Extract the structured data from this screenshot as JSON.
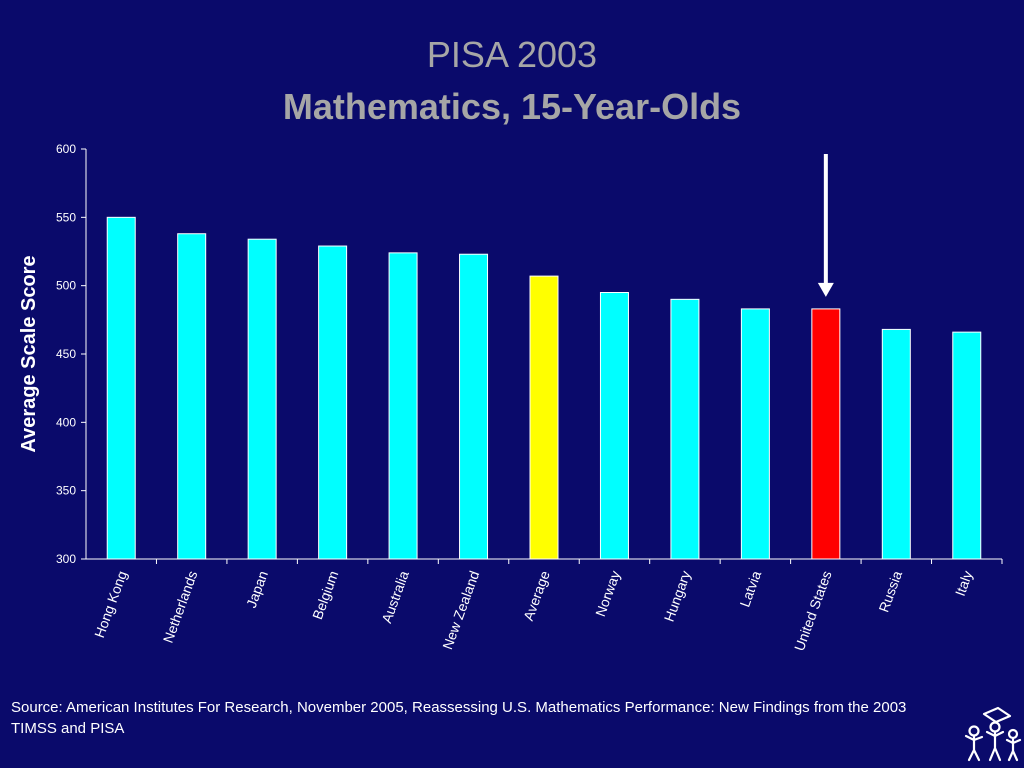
{
  "slide": {
    "title": "PISA 2003",
    "subtitle": "Mathematics, 15-Year-Olds",
    "source": "Source: American Institutes For Research, November 2005, Reassessing U.S. Mathematics Performance: New Findings from the 2003 TIMSS and PISA",
    "logo_icon": "children-figures-logo-icon"
  },
  "chart_data": {
    "type": "bar",
    "ylabel": "Average Scale Score",
    "xlabel": "",
    "ylim": [
      300,
      600
    ],
    "yticks": [
      300,
      350,
      400,
      450,
      500,
      550,
      600
    ],
    "categories": [
      "Hong Kong",
      "Netherlands",
      "Japan",
      "Belgium",
      "Australia",
      "New Zealand",
      "Average",
      "Norway",
      "Hungary",
      "Latvia",
      "United States",
      "Russia",
      "Italy"
    ],
    "values": [
      550,
      538,
      534,
      529,
      524,
      523,
      507,
      495,
      490,
      483,
      483,
      468,
      466
    ],
    "colors": [
      "#00ffff",
      "#00ffff",
      "#00ffff",
      "#00ffff",
      "#00ffff",
      "#00ffff",
      "#ffff00",
      "#00ffff",
      "#00ffff",
      "#00ffff",
      "#ff0000",
      "#00ffff",
      "#00ffff"
    ],
    "highlight_arrow_category": "United States",
    "grid": false,
    "legend": "none"
  },
  "colors": {
    "background": "#0a0a6b",
    "axis": "#ffffff",
    "title": "#a6a6a6",
    "bar_default": "#00ffff",
    "bar_average": "#ffff00",
    "bar_highlight": "#ff0000"
  }
}
